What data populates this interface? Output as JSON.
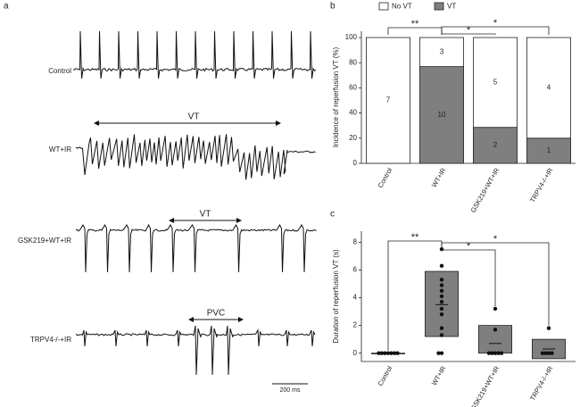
{
  "figure_a": {
    "label": "a",
    "traces": [
      {
        "label": "Control"
      },
      {
        "label": "WT+IR"
      },
      {
        "label": "GSK219+WT+IR"
      },
      {
        "label": "TRPV4-/-+IR"
      }
    ],
    "annotations": [
      "VT",
      "VT",
      "PVC"
    ],
    "scale_bar": "200 ms"
  },
  "chart_data": [
    {
      "type": "stacked-bar",
      "label": "b",
      "y_label": "Incidence of reperfusion VT (%)",
      "categories": [
        "Control",
        "WT+IR",
        "GSK219+WT+IR",
        "TRPV4-/-+IR"
      ],
      "series": [
        {
          "name": "VT",
          "color": "#7f7f7f",
          "values": [
            0,
            76.9,
            28.6,
            20
          ],
          "counts": [
            null,
            10,
            2,
            1
          ]
        },
        {
          "name": "No VT",
          "color": "#ffffff",
          "values": [
            100,
            23.1,
            71.4,
            80
          ],
          "counts": [
            7,
            3,
            5,
            4
          ]
        }
      ],
      "ylim": [
        0,
        105
      ],
      "yticks": [
        0,
        20,
        40,
        60,
        80,
        100
      ],
      "significance": [
        {
          "from": 0,
          "to": 1,
          "label": "**"
        },
        {
          "from": 1,
          "to": 2,
          "label": "*"
        },
        {
          "from": 1,
          "to": 3,
          "label": "*"
        }
      ]
    },
    {
      "type": "box-dot",
      "label": "c",
      "y_label": "Duration of reperfusion VT (s)",
      "categories": [
        "Control",
        "WT+IR",
        "GSK219+WT+IR",
        "TRPV4-/-+IR"
      ],
      "color": "#7f7f7f",
      "boxes": [
        {
          "box_low": 0,
          "box_high": 0,
          "mean": 0,
          "points": [
            0,
            0,
            0,
            0,
            0,
            0,
            0
          ]
        },
        {
          "box_low": 1.2,
          "box_high": 5.9,
          "mean": 3.5,
          "points": [
            7.5,
            6.3,
            5.3,
            4.9,
            4.5,
            4.1,
            3.7,
            3.2,
            2.8,
            1.8,
            1.3,
            0,
            0
          ]
        },
        {
          "box_low": 0,
          "box_high": 2.0,
          "mean": 0.7,
          "points": [
            3.2,
            1.7,
            0,
            0,
            0,
            0,
            0
          ]
        },
        {
          "box_low": -0.4,
          "box_high": 1.0,
          "mean": 0.3,
          "points": [
            1.8,
            0,
            0,
            0,
            0
          ]
        }
      ],
      "ylim": [
        -0.6,
        8.8
      ],
      "yticks": [
        0,
        2,
        4,
        6,
        8
      ],
      "significance": [
        {
          "from": 0,
          "to": 1,
          "label": "**"
        },
        {
          "from": 1,
          "to": 2,
          "label": "*"
        },
        {
          "from": 1,
          "to": 3,
          "label": "*"
        }
      ]
    }
  ]
}
